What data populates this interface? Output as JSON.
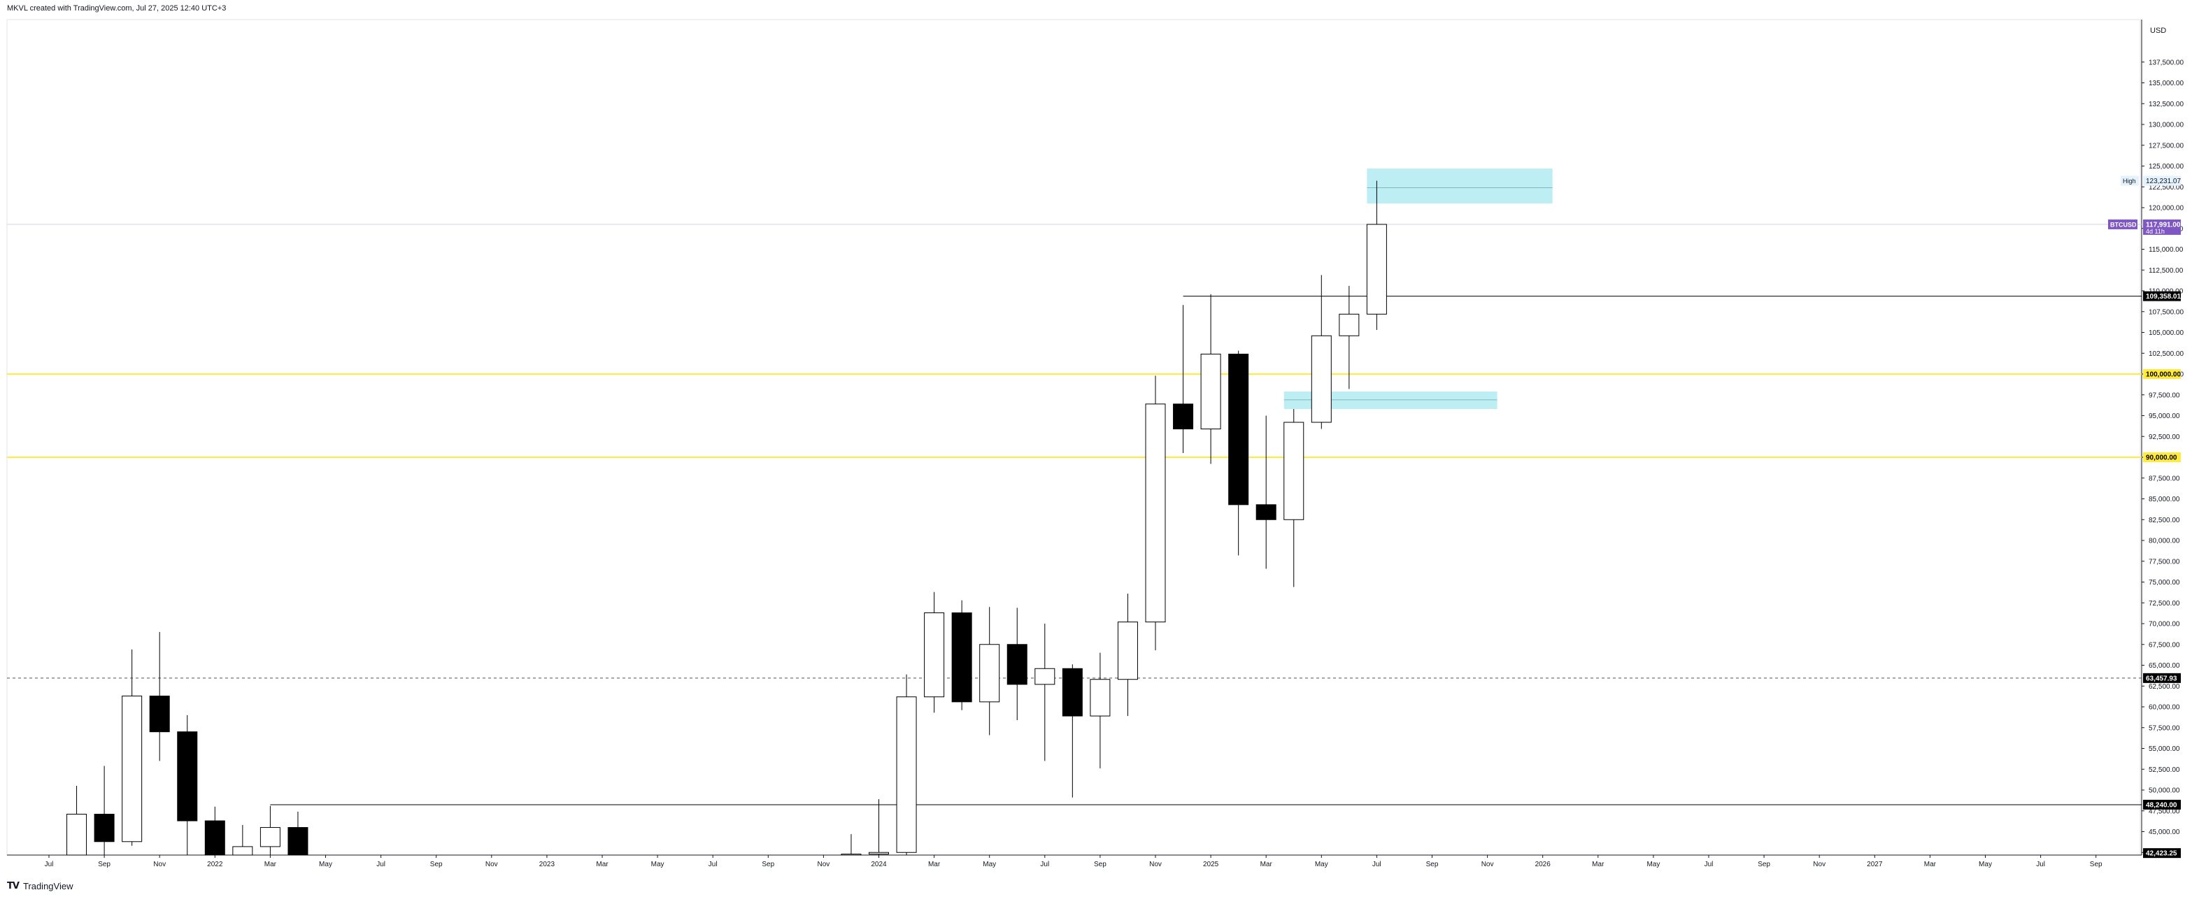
{
  "header": {
    "text": "MKVL created with TradingView.com, Jul 27, 2025 12:40 UTC+3"
  },
  "footer": {
    "logo_text": "TV",
    "brand": "TradingView"
  },
  "colors": {
    "bull_fill": "#ffffff",
    "bear_fill": "#000000",
    "wick": "#000000",
    "zone": "#b2ebf2",
    "yellow": "#ffeb3b",
    "price_label": "#7e57c2"
  },
  "chart_data": {
    "type": "candlestick",
    "symbol": "BTCUSD",
    "currency": "USD",
    "ylim": [
      42423.25,
      140000
    ],
    "y_ticks": [
      137500,
      135000,
      132500,
      130000,
      127500,
      125000,
      122500,
      120000,
      117500,
      115000,
      112500,
      110000,
      107500,
      105000,
      102500,
      100000,
      97500,
      95000,
      92500,
      90000,
      87500,
      85000,
      82500,
      80000,
      77500,
      75000,
      72500,
      70000,
      67500,
      65000,
      62500,
      60000,
      57500,
      55000,
      52500,
      50000,
      47500,
      45000,
      42500
    ],
    "y_tick_labels": [
      "137,500.00",
      "135,000.00",
      "132,500.00",
      "130,000.00",
      "127,500.00",
      "125,000.00",
      "122,500.00",
      "120,000.00",
      "117,500.00",
      "115,000.00",
      "112,500.00",
      "110,000.00",
      "107,500.00",
      "105,000.00",
      "102,500.00",
      "100,000.00",
      "97,500.00",
      "95,000.00",
      "92,500.00",
      "90,000.00",
      "87,500.00",
      "85,000.00",
      "82,500.00",
      "80,000.00",
      "77,500.00",
      "75,000.00",
      "72,500.00",
      "70,000.00",
      "67,500.00",
      "65,000.00",
      "62,500.00",
      "60,000.00",
      "57,500.00",
      "55,000.00",
      "52,500.00",
      "50,000.00",
      "47,500.00",
      "45,000.00",
      "42,500.00"
    ],
    "x_tick_labels": [
      "Jul",
      "Sep",
      "Nov",
      "2022",
      "Mar",
      "May",
      "Jul",
      "Sep",
      "Nov",
      "2023",
      "Mar",
      "May",
      "Jul",
      "Sep",
      "Nov",
      "2024",
      "Mar",
      "May",
      "Jul",
      "Sep",
      "Nov",
      "2025",
      "Mar",
      "May",
      "Jul",
      "Sep",
      "Nov",
      "2026",
      "Mar",
      "May",
      "Jul",
      "Sep",
      "Nov",
      "2027",
      "Mar",
      "May",
      "Jul",
      "Sep"
    ],
    "candles": [
      {
        "date": "2021-08",
        "open": 41500,
        "high": 50500,
        "low": 37300,
        "close": 47100
      },
      {
        "date": "2021-09",
        "open": 47100,
        "high": 52900,
        "low": 40600,
        "close": 43800
      },
      {
        "date": "2021-10",
        "open": 43800,
        "high": 66900,
        "low": 43300,
        "close": 61300
      },
      {
        "date": "2021-11",
        "open": 61300,
        "high": 69000,
        "low": 53500,
        "close": 57000
      },
      {
        "date": "2021-12",
        "open": 57000,
        "high": 59000,
        "low": 42000,
        "close": 46300
      },
      {
        "date": "2022-01",
        "open": 46300,
        "high": 48000,
        "low": 33000,
        "close": 38500
      },
      {
        "date": "2022-02",
        "open": 38500,
        "high": 45800,
        "low": 34300,
        "close": 43200
      },
      {
        "date": "2022-03",
        "open": 43200,
        "high": 48100,
        "low": 37500,
        "close": 45500
      },
      {
        "date": "2022-04",
        "open": 45500,
        "high": 47400,
        "low": 37700,
        "close": 37700
      },
      {
        "date": "2023-12",
        "open": 37700,
        "high": 44700,
        "low": 37600,
        "close": 42300
      },
      {
        "date": "2024-01",
        "open": 42300,
        "high": 48900,
        "low": 38500,
        "close": 42500
      },
      {
        "date": "2024-02",
        "open": 42500,
        "high": 63900,
        "low": 41900,
        "close": 61200
      },
      {
        "date": "2024-03",
        "open": 61200,
        "high": 73800,
        "low": 59300,
        "close": 71300
      },
      {
        "date": "2024-04",
        "open": 71300,
        "high": 72800,
        "low": 59600,
        "close": 60600
      },
      {
        "date": "2024-05",
        "open": 60600,
        "high": 72000,
        "low": 56600,
        "close": 67500
      },
      {
        "date": "2024-06",
        "open": 67500,
        "high": 71900,
        "low": 58400,
        "close": 62700
      },
      {
        "date": "2024-07",
        "open": 62700,
        "high": 70000,
        "low": 53500,
        "close": 64600
      },
      {
        "date": "2024-08",
        "open": 64600,
        "high": 65100,
        "low": 49100,
        "close": 58900
      },
      {
        "date": "2024-09",
        "open": 58900,
        "high": 66500,
        "low": 52600,
        "close": 63300
      },
      {
        "date": "2024-10",
        "open": 63300,
        "high": 73600,
        "low": 58900,
        "close": 70200
      },
      {
        "date": "2024-11",
        "open": 70200,
        "high": 99800,
        "low": 66800,
        "close": 96400
      },
      {
        "date": "2024-12",
        "open": 96400,
        "high": 108300,
        "low": 90500,
        "close": 93400
      },
      {
        "date": "2025-01",
        "open": 93400,
        "high": 109600,
        "low": 89200,
        "close": 102400
      },
      {
        "date": "2025-02",
        "open": 102400,
        "high": 102800,
        "low": 78200,
        "close": 84300
      },
      {
        "date": "2025-03",
        "open": 84300,
        "high": 95000,
        "low": 76600,
        "close": 82500
      },
      {
        "date": "2025-04",
        "open": 82500,
        "high": 95800,
        "low": 74400,
        "close": 94200
      },
      {
        "date": "2025-05",
        "open": 94200,
        "high": 111900,
        "low": 93400,
        "close": 104600
      },
      {
        "date": "2025-06",
        "open": 104600,
        "high": 110600,
        "low": 98200,
        "close": 107200
      },
      {
        "date": "2025-07",
        "open": 107200,
        "high": 123231.07,
        "low": 105300,
        "close": 117991
      }
    ],
    "zones": [
      {
        "from": "2025-07",
        "to": "2026-01",
        "low": 120500,
        "high": 124700,
        "mid": 122400
      },
      {
        "from": "2025-04",
        "to": "2025-11",
        "low": 95800,
        "high": 97900,
        "mid": 96900
      }
    ],
    "lines": [
      {
        "kind": "yellow",
        "value": 100000,
        "label": "100,000.00"
      },
      {
        "kind": "yellow",
        "value": 90000,
        "label": "90,000.00"
      },
      {
        "kind": "black",
        "value": 109358.01,
        "from": "2024-12",
        "label": "109,358.01"
      },
      {
        "kind": "black",
        "value": 48240,
        "from": "2022-03",
        "label": "48,240.00"
      },
      {
        "kind": "dashed",
        "value": 63457.93,
        "label": "63,457.93"
      },
      {
        "kind": "gray",
        "value": 117991,
        "label": "117,991.00"
      },
      {
        "kind": "bottom",
        "value": 42423.25,
        "label": "42,423.25"
      }
    ],
    "current_price": {
      "symbol": "BTCUSD",
      "value": 117991,
      "label": "117,991.00",
      "countdown": "4d 11h"
    },
    "high_marker": {
      "caption": "High",
      "value": 123231.07,
      "label": "123,231.07"
    }
  }
}
